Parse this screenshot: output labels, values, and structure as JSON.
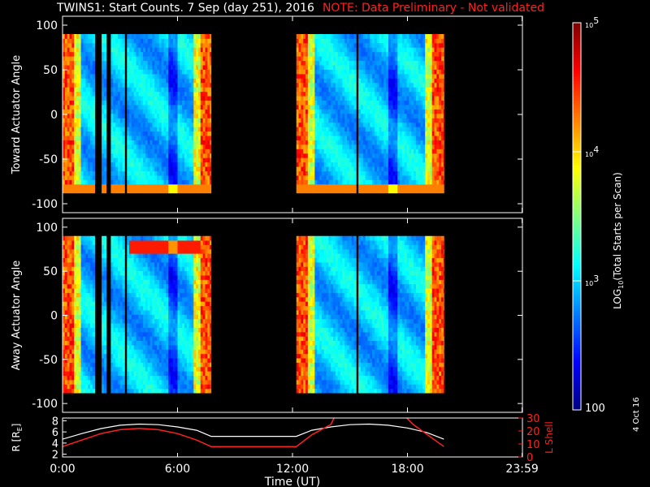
{
  "title": "TWINS1: Start Counts.  7 Sep (day 251), 2016",
  "note": "NOTE: Data Preliminary - Not validated",
  "side_date": "4 Oct 16",
  "colors": {
    "background": "#000000",
    "axes": "#ffffff",
    "note": "#ff2020",
    "lshell_line": "#ff2020",
    "r_line": "#ffffff"
  },
  "chart_data": [
    {
      "type": "heatmap",
      "name_id": "toward",
      "ylabel": "Toward Actuator Angle",
      "ylim": [
        -110,
        110
      ],
      "yticks": [
        100,
        50,
        0,
        -50,
        -100
      ],
      "xlim": [
        0,
        24
      ],
      "angle_range": [
        -88,
        90
      ],
      "data_intervals": [
        [
          0,
          7.75
        ],
        [
          12.2,
          19.9
        ]
      ],
      "gaps_hours": [
        1.75,
        1.95,
        2.35,
        3.25,
        15.3
      ]
    },
    {
      "type": "heatmap",
      "name_id": "away",
      "ylabel": "Away Actuator Angle",
      "ylim": [
        -110,
        110
      ],
      "yticks": [
        100,
        50,
        0,
        -50,
        -100
      ],
      "xlim": [
        0,
        24
      ],
      "angle_range": [
        -88,
        90
      ],
      "data_intervals": [
        [
          0,
          7.75
        ],
        [
          12.2,
          19.9
        ]
      ],
      "gaps_hours": [
        1.75,
        1.95,
        2.35,
        3.25,
        15.3
      ]
    },
    {
      "type": "line",
      "name_id": "orbit",
      "ylabel_left": "R [R",
      "ylabel_left_sub": "E",
      "ylabel_left_end": "]",
      "ylabel_right": "L Shell",
      "xlabel": "Time (UT)",
      "xlim": [
        0,
        24
      ],
      "xticks": [
        0,
        6,
        12,
        18,
        23.983
      ],
      "xtick_labels": [
        "0:00",
        "6:00",
        "12:00",
        "18:00",
        "23:59"
      ],
      "ylim_left": [
        1.5,
        8.5
      ],
      "yticks_left": [
        8,
        6,
        4,
        2
      ],
      "ylim_right": [
        0,
        30
      ],
      "yticks_right": [
        30,
        20,
        10,
        0
      ],
      "r_series": {
        "x": [
          0,
          1,
          2,
          3,
          4,
          5,
          6,
          7,
          7.75,
          12.2,
          13,
          14,
          15,
          16,
          17,
          18,
          19,
          19.9
        ],
        "y": [
          4.7,
          5.7,
          6.6,
          7.2,
          7.4,
          7.3,
          6.9,
          6.3,
          5.2,
          5.2,
          6.3,
          6.9,
          7.3,
          7.4,
          7.2,
          6.7,
          5.9,
          4.7
        ]
      },
      "lshell_series": {
        "segments": [
          {
            "x": [
              0,
              1,
              2,
              3,
              4,
              5,
              6,
              7,
              7.75,
              12.2,
              13,
              14,
              14.2
            ],
            "y": [
              8,
              13,
              18,
              21,
              22,
              21,
              18,
              13,
              8,
              8,
              17,
              25,
              31
            ]
          },
          {
            "x": [
              17.9,
              18.3,
              19.9
            ],
            "y": [
              31,
              25,
              8
            ]
          }
        ]
      }
    }
  ],
  "colorbar": {
    "label": "LOG",
    "label_sub": "10",
    "label_end": "(Total Starts per Scan)",
    "range": [
      100,
      100000
    ],
    "ticks": [
      {
        "value": 100000,
        "base": "10",
        "exp": "5"
      },
      {
        "value": 10000,
        "base": "10",
        "exp": "4"
      },
      {
        "value": 1000,
        "base": "10",
        "exp": "3"
      },
      {
        "value": 100,
        "base": "100",
        "exp": ""
      }
    ]
  }
}
